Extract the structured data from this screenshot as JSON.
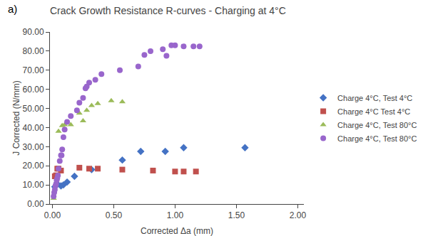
{
  "chart_data": {
    "type": "scatter",
    "title": "Crack Growth Resistance R-curves - Charging at 4°C",
    "x_label": "Corrected Δa (mm)",
    "y_label": "J Corrected (N/mm)",
    "annotations": [
      "a)"
    ],
    "xlim": [
      -0.02,
      2.05
    ],
    "ylim": [
      0.0,
      90.0
    ],
    "xticks": [
      {
        "value": 0.0,
        "label": "0.00"
      },
      {
        "value": 0.5,
        "label": "0.50"
      },
      {
        "value": 1.0,
        "label": "1.00"
      },
      {
        "value": 1.5,
        "label": "1.50"
      },
      {
        "value": 2.0,
        "label": "2.00"
      }
    ],
    "yticks": [
      {
        "value": 0,
        "label": "0.00"
      },
      {
        "value": 10,
        "label": "10.00"
      },
      {
        "value": 20,
        "label": "20.00"
      },
      {
        "value": 30,
        "label": "30.00"
      },
      {
        "value": 40,
        "label": "40.00"
      },
      {
        "value": 50,
        "label": "50.00"
      },
      {
        "value": 60,
        "label": "60.00"
      },
      {
        "value": 70,
        "label": "70.00"
      },
      {
        "value": 80,
        "label": "80.00"
      },
      {
        "value": 90,
        "label": "90.00"
      }
    ],
    "grid": false,
    "legend": "center right",
    "series": [
      {
        "name": "Charge 4°C, Test 4°C",
        "color": "#4472C4",
        "marker": "diamond",
        "x": [
          0.02,
          0.04,
          0.07,
          0.09,
          0.12,
          0.18,
          0.32,
          0.57,
          0.72,
          0.92,
          1.07,
          1.57
        ],
        "values": [
          9.0,
          10.5,
          9.5,
          10.0,
          11.5,
          14.5,
          18.0,
          23.0,
          27.5,
          27.5,
          29.5,
          29.5
        ]
      },
      {
        "name": "Charge 4°C Test 4°C",
        "color": "#C0504D",
        "marker": "square",
        "x": [
          0.02,
          0.03,
          0.04,
          0.05,
          0.07,
          0.22,
          0.3,
          0.37,
          0.57,
          0.82,
          1.0,
          1.07,
          1.17
        ],
        "values": [
          14.5,
          15.0,
          18.5,
          18.5,
          17.5,
          19.0,
          18.5,
          18.5,
          18.0,
          17.5,
          17.0,
          17.0,
          17.0
        ]
      },
      {
        "name": "Charge 4°C, Test 80°C",
        "color": "#9BBB59",
        "marker": "triangle-up",
        "x": [
          0.01,
          0.05,
          0.08,
          0.1,
          0.15,
          0.22,
          0.25,
          0.28,
          0.32,
          0.37,
          0.48,
          0.57
        ],
        "values": [
          3.0,
          38.0,
          41.0,
          41.5,
          41.5,
          47.5,
          43.5,
          49.0,
          51.5,
          52.5,
          54.0,
          53.5
        ]
      },
      {
        "name": "Charge 4°C, Test 80°C",
        "color": "#9966CC",
        "marker": "circle",
        "x": [
          0.01,
          0.015,
          0.02,
          0.025,
          0.03,
          0.035,
          0.04,
          0.045,
          0.05,
          0.06,
          0.07,
          0.075,
          0.08,
          0.09,
          0.1,
          0.12,
          0.15,
          0.2,
          0.22,
          0.25,
          0.27,
          0.28,
          0.3,
          0.35,
          0.4,
          0.55,
          0.7,
          0.75,
          0.8,
          0.9,
          0.93,
          0.97,
          1.0,
          1.07,
          1.15,
          1.2
        ],
        "values": [
          4.0,
          6.0,
          7.5,
          9.5,
          10.5,
          12.5,
          13.5,
          15.0,
          18.5,
          22.5,
          25.5,
          25.5,
          28.5,
          35.0,
          39.0,
          43.0,
          46.0,
          49.0,
          53.0,
          55.5,
          60.5,
          61.5,
          63.5,
          65.0,
          68.0,
          70.0,
          72.0,
          78.0,
          80.0,
          81.0,
          77.5,
          83.0,
          83.0,
          82.5,
          82.5,
          82.5
        ]
      }
    ]
  }
}
